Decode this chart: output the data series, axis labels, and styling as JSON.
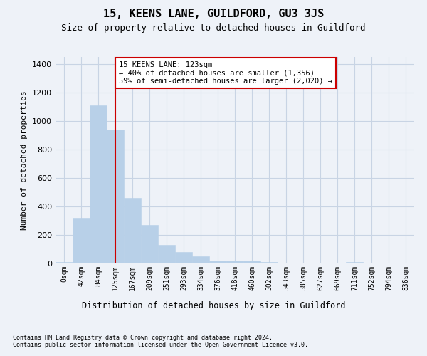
{
  "title": "15, KEENS LANE, GUILDFORD, GU3 3JS",
  "subtitle": "Size of property relative to detached houses in Guildford",
  "xlabel": "Distribution of detached houses by size in Guildford",
  "ylabel": "Number of detached properties",
  "footnote1": "Contains HM Land Registry data © Crown copyright and database right 2024.",
  "footnote2": "Contains public sector information licensed under the Open Government Licence v3.0.",
  "categories": [
    "0sqm",
    "42sqm",
    "84sqm",
    "125sqm",
    "167sqm",
    "209sqm",
    "251sqm",
    "293sqm",
    "334sqm",
    "376sqm",
    "418sqm",
    "460sqm",
    "502sqm",
    "543sqm",
    "585sqm",
    "627sqm",
    "669sqm",
    "711sqm",
    "752sqm",
    "794sqm",
    "836sqm"
  ],
  "values": [
    10,
    320,
    1110,
    940,
    460,
    270,
    130,
    80,
    50,
    22,
    22,
    18,
    12,
    5,
    5,
    5,
    5,
    12,
    0,
    0,
    0
  ],
  "bar_color": "#b8d0e8",
  "bar_edgecolor": "#b8d0e8",
  "grid_color": "#c8d4e4",
  "background_color": "#eef2f8",
  "vline_x_index": 3,
  "vline_color": "#cc0000",
  "annotation_text": "15 KEENS LANE: 123sqm\n← 40% of detached houses are smaller (1,356)\n59% of semi-detached houses are larger (2,020) →",
  "annotation_box_facecolor": "#ffffff",
  "annotation_box_edgecolor": "#cc0000",
  "ylim": [
    0,
    1450
  ],
  "yticks": [
    0,
    200,
    400,
    600,
    800,
    1000,
    1200,
    1400
  ]
}
